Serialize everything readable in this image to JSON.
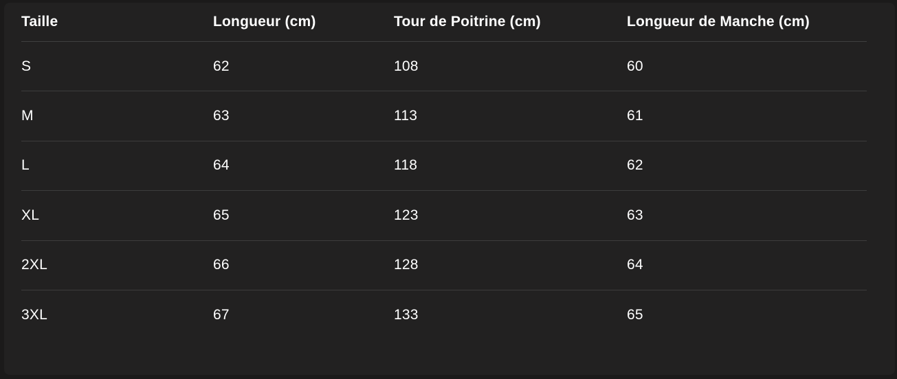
{
  "table": {
    "title": "size-chart",
    "columns": [
      "Taille",
      "Longueur (cm)",
      "Tour de Poitrine (cm)",
      "Longueur de Manche (cm)"
    ],
    "rows": [
      {
        "taille": "S",
        "longueur": "62",
        "poitrine": "108",
        "manche": "60"
      },
      {
        "taille": "M",
        "longueur": "63",
        "poitrine": "113",
        "manche": "61"
      },
      {
        "taille": "L",
        "longueur": "64",
        "poitrine": "118",
        "manche": "62"
      },
      {
        "taille": "XL",
        "longueur": "65",
        "poitrine": "123",
        "manche": "63"
      },
      {
        "taille": "2XL",
        "longueur": "66",
        "poitrine": "128",
        "manche": "64"
      },
      {
        "taille": "3XL",
        "longueur": "67",
        "poitrine": "133",
        "manche": "65"
      }
    ]
  },
  "colors": {
    "page_background": "#1b1a1a",
    "panel_background": "#222121",
    "divider": "#3d3d3d",
    "text": "#ffffff"
  }
}
